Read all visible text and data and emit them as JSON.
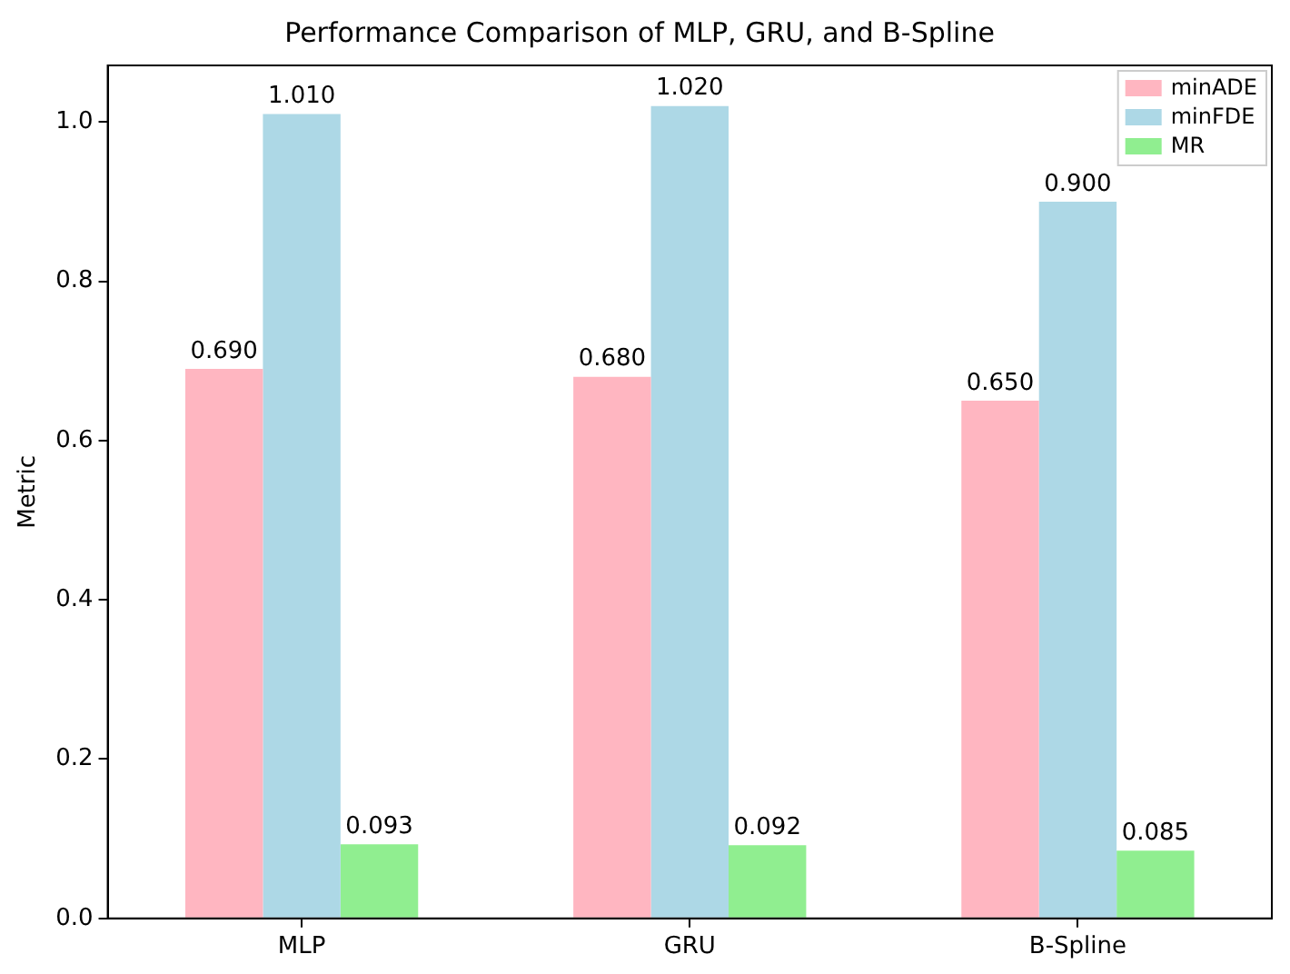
{
  "chart_data": {
    "type": "bar",
    "title": "Performance Comparison of MLP, GRU, and B-Spline",
    "ylabel": "Metric",
    "categories": [
      "MLP",
      "GRU",
      "B-Spline"
    ],
    "series": [
      {
        "name": "minADE",
        "color": "#ffb6c1",
        "values": [
          0.69,
          0.68,
          0.65
        ],
        "value_labels": [
          "0.690",
          "0.680",
          "0.650"
        ]
      },
      {
        "name": "minFDE",
        "color": "#add8e6",
        "values": [
          1.01,
          1.02,
          0.9
        ],
        "value_labels": [
          "1.010",
          "1.020",
          "0.900"
        ]
      },
      {
        "name": "MR",
        "color": "#90ee90",
        "values": [
          0.093,
          0.092,
          0.085
        ],
        "value_labels": [
          "0.093",
          "0.092",
          "0.085"
        ]
      }
    ],
    "ylim": [
      0,
      1.071
    ],
    "yticks": [
      {
        "value": 0,
        "label": "0.0"
      },
      {
        "value": 0.2,
        "label": "0.2"
      },
      {
        "value": 0.4,
        "label": "0.4"
      },
      {
        "value": 0.6,
        "label": "0.6"
      },
      {
        "value": 0.8,
        "label": "0.8"
      },
      {
        "value": 1,
        "label": "1.0"
      }
    ],
    "grid": false,
    "legend": "top right"
  }
}
